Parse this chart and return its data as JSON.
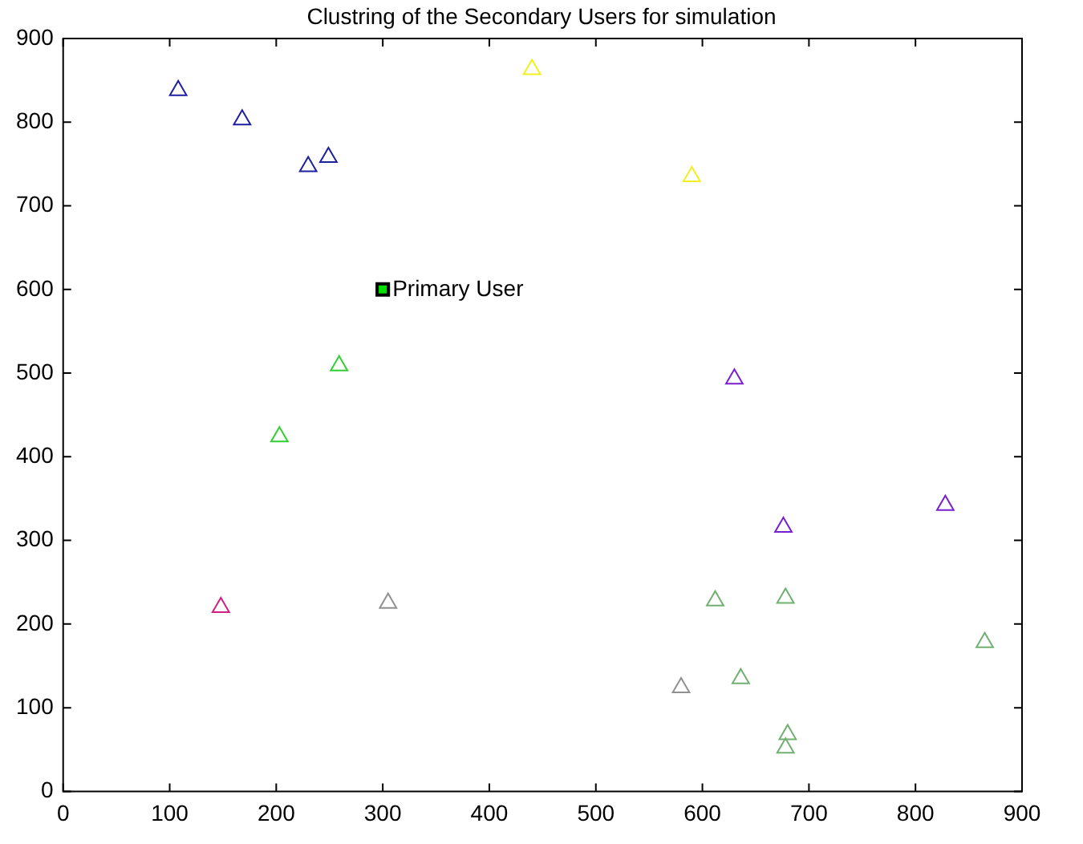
{
  "chart_data": {
    "type": "scatter",
    "title": "Clustring of the Secondary Users for simulation",
    "xlim": [
      0,
      900
    ],
    "ylim": [
      0,
      900
    ],
    "xticks": [
      0,
      100,
      200,
      300,
      400,
      500,
      600,
      700,
      800,
      900
    ],
    "yticks": [
      0,
      100,
      200,
      300,
      400,
      500,
      600,
      700,
      800,
      900
    ],
    "grid": false,
    "legend": false,
    "marker": "triangle",
    "series": [
      {
        "color": "#1f1fa0",
        "x": [
          108,
          168,
          230,
          249
        ],
        "values": [
          838,
          803,
          747,
          758
        ]
      },
      {
        "color": "#f0f020",
        "x": [
          440,
          590
        ],
        "values": [
          863,
          735
        ]
      },
      {
        "color": "#7a1fd0",
        "x": [
          630,
          676,
          828
        ],
        "values": [
          493,
          316,
          342
        ]
      },
      {
        "color": "#30d030",
        "x": [
          203,
          259
        ],
        "values": [
          424,
          509
        ]
      },
      {
        "color": "#d02080",
        "x": [
          148
        ],
        "values": [
          220
        ]
      },
      {
        "color": "#909090",
        "x": [
          305,
          580
        ],
        "values": [
          225,
          124
        ]
      },
      {
        "color": "#70b070",
        "x": [
          612,
          678,
          636,
          680,
          678,
          865
        ],
        "values": [
          228,
          231,
          135,
          68,
          52,
          178
        ]
      },
      {
        "color": "#00e000",
        "x": [
          300
        ],
        "values": [
          600
        ],
        "marker": "square"
      }
    ],
    "annotations": [
      {
        "text": "Primary User",
        "x": 300,
        "y": 600
      }
    ]
  }
}
